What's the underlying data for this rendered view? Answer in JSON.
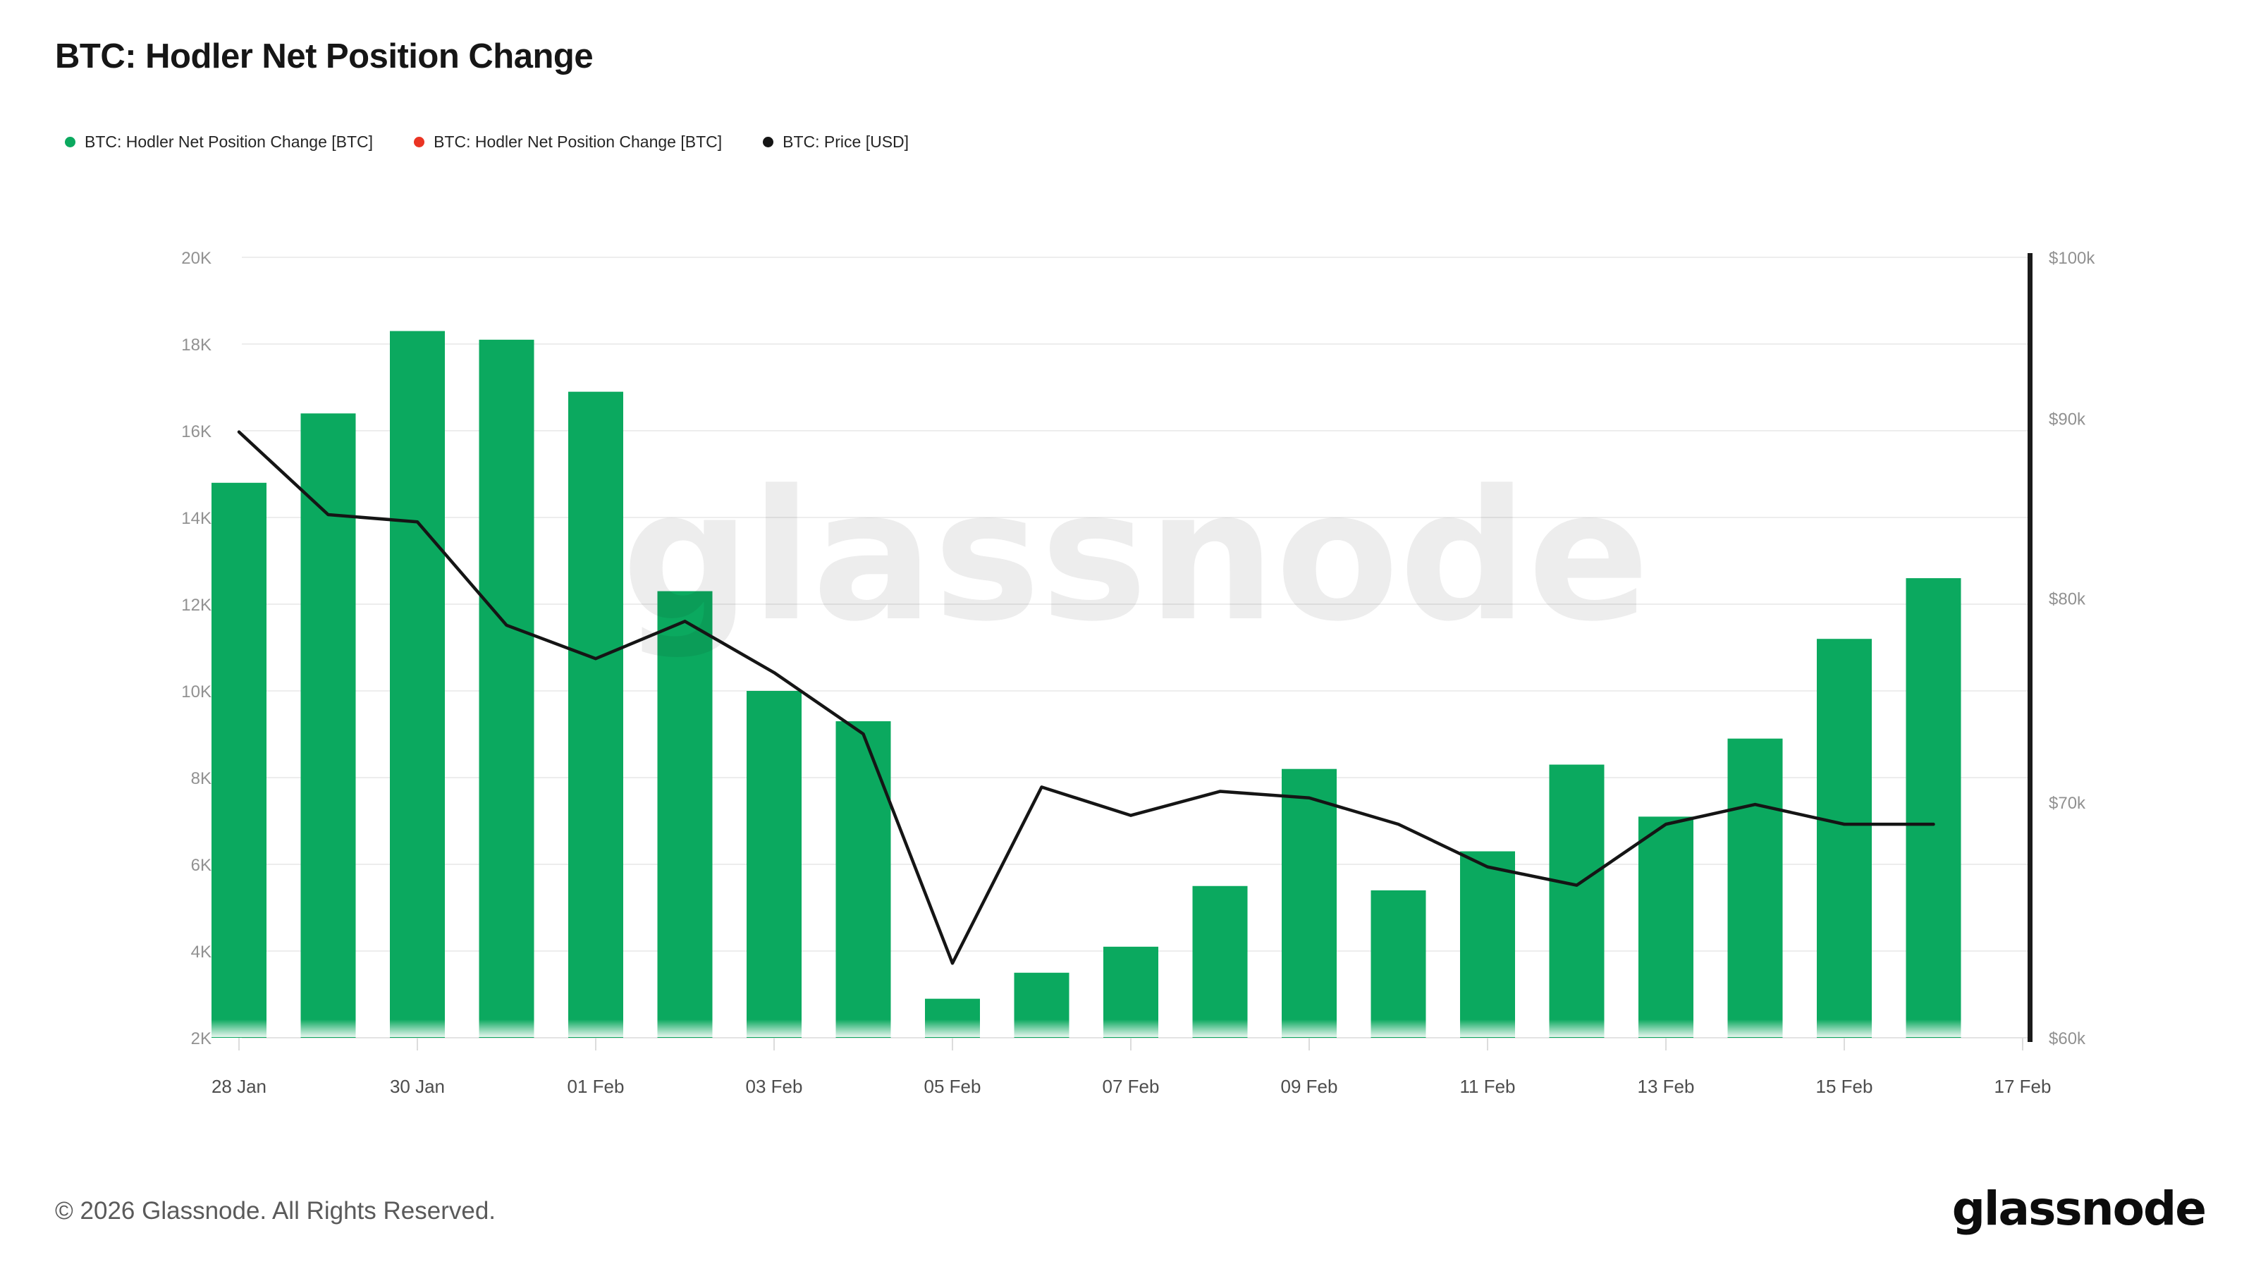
{
  "header": {
    "title": "BTC: Hodler Net Position Change",
    "legend": [
      {
        "label": "BTC: Hodler Net Position Change [BTC]",
        "color": "#0ba95f"
      },
      {
        "label": "BTC: Hodler Net Position Change [BTC]",
        "color": "#ea3423"
      },
      {
        "label": "BTC: Price [USD]",
        "color": "#151515"
      }
    ]
  },
  "chart_data": {
    "type": "bar+line",
    "title": "BTC: Hodler Net Position Change",
    "categories": [
      "28 Jan",
      "29 Jan",
      "30 Jan",
      "31 Jan",
      "01 Feb",
      "02 Feb",
      "03 Feb",
      "04 Feb",
      "05 Feb",
      "06 Feb",
      "07 Feb",
      "08 Feb",
      "09 Feb",
      "10 Feb",
      "11 Feb",
      "12 Feb",
      "13 Feb",
      "14 Feb",
      "15 Feb",
      "16 Feb"
    ],
    "series": [
      {
        "name": "BTC: Hodler Net Position Change [BTC]",
        "type": "bar",
        "axis": "left",
        "color": "#0ba95f",
        "values": [
          14800,
          16400,
          18300,
          18100,
          16900,
          12300,
          10000,
          9300,
          2900,
          3500,
          4100,
          5500,
          8200,
          5400,
          6300,
          8300,
          7100,
          8900,
          11200,
          12600
        ]
      },
      {
        "name": "BTC: Price [USD]",
        "type": "line",
        "axis": "right",
        "color": "#151515",
        "values": [
          89200,
          84500,
          84100,
          78600,
          76900,
          78800,
          76200,
          73200,
          63000,
          70700,
          69400,
          70500,
          70200,
          69000,
          67100,
          66300,
          69000,
          69900,
          69000,
          69000
        ]
      }
    ],
    "left_axis": {
      "scale": "linear",
      "min": 2000,
      "max": 20000,
      "tick_values": [
        2000,
        4000,
        6000,
        8000,
        10000,
        12000,
        14000,
        16000,
        18000,
        20000
      ],
      "tick_labels": [
        "2K",
        "4K",
        "6K",
        "8K",
        "10K",
        "12K",
        "14K",
        "16K",
        "18K",
        "20K"
      ]
    },
    "right_axis": {
      "scale": "log",
      "min": 60000,
      "max": 100000,
      "tick_values": [
        60000,
        70000,
        80000,
        90000,
        100000
      ],
      "tick_labels": [
        "$60k",
        "$70k",
        "$80k",
        "$90k",
        "$100k"
      ]
    },
    "x_axis": {
      "tick_labels": [
        "28 Jan",
        "30 Jan",
        "01 Feb",
        "03 Feb",
        "05 Feb",
        "07 Feb",
        "09 Feb",
        "11 Feb",
        "13 Feb",
        "15 Feb",
        "17 Feb"
      ],
      "tick_day_indices": [
        0,
        2,
        4,
        6,
        8,
        10,
        12,
        14,
        16,
        18,
        20
      ]
    },
    "grid": "horizontal",
    "legend_position": "top-left",
    "watermark": "glassnode",
    "colors": {
      "bar_green": "#0ba95f",
      "legend_red": "#ea3423",
      "price_black": "#151515",
      "gridline": "#ededed",
      "axis_label_gray": "#919191",
      "x_label_gray": "#4d4d4d"
    }
  },
  "footer": {
    "copyright": "© 2026 Glassnode. All Rights Reserved.",
    "logo_text": "glassnode"
  }
}
